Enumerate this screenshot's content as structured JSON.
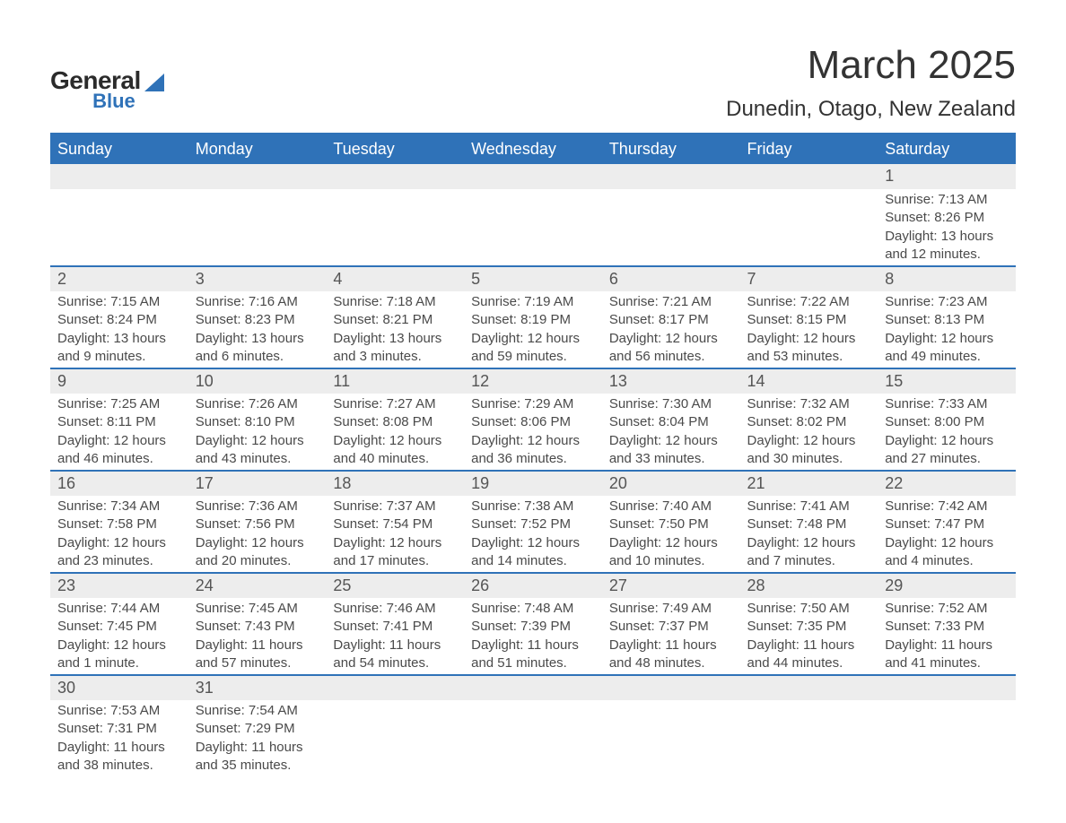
{
  "logo": {
    "general": "General",
    "blue": "Blue",
    "shape_color": "#2f72b8"
  },
  "header": {
    "month_title": "March 2025",
    "location": "Dunedin, Otago, New Zealand"
  },
  "colors": {
    "header_bg": "#2f72b8",
    "header_text": "#ffffff",
    "daynum_bg": "#ededed",
    "row_border": "#2f72b8",
    "body_text": "#4a4a4a",
    "page_bg": "#ffffff"
  },
  "typography": {
    "title_fontsize": 44,
    "location_fontsize": 24,
    "weekday_fontsize": 18,
    "daynum_fontsize": 18,
    "detail_fontsize": 15
  },
  "weekdays": [
    "Sunday",
    "Monday",
    "Tuesday",
    "Wednesday",
    "Thursday",
    "Friday",
    "Saturday"
  ],
  "weeks": [
    [
      null,
      null,
      null,
      null,
      null,
      null,
      {
        "n": "1",
        "sunrise": "Sunrise: 7:13 AM",
        "sunset": "Sunset: 8:26 PM",
        "daylight": "Daylight: 13 hours and 12 minutes."
      }
    ],
    [
      {
        "n": "2",
        "sunrise": "Sunrise: 7:15 AM",
        "sunset": "Sunset: 8:24 PM",
        "daylight": "Daylight: 13 hours and 9 minutes."
      },
      {
        "n": "3",
        "sunrise": "Sunrise: 7:16 AM",
        "sunset": "Sunset: 8:23 PM",
        "daylight": "Daylight: 13 hours and 6 minutes."
      },
      {
        "n": "4",
        "sunrise": "Sunrise: 7:18 AM",
        "sunset": "Sunset: 8:21 PM",
        "daylight": "Daylight: 13 hours and 3 minutes."
      },
      {
        "n": "5",
        "sunrise": "Sunrise: 7:19 AM",
        "sunset": "Sunset: 8:19 PM",
        "daylight": "Daylight: 12 hours and 59 minutes."
      },
      {
        "n": "6",
        "sunrise": "Sunrise: 7:21 AM",
        "sunset": "Sunset: 8:17 PM",
        "daylight": "Daylight: 12 hours and 56 minutes."
      },
      {
        "n": "7",
        "sunrise": "Sunrise: 7:22 AM",
        "sunset": "Sunset: 8:15 PM",
        "daylight": "Daylight: 12 hours and 53 minutes."
      },
      {
        "n": "8",
        "sunrise": "Sunrise: 7:23 AM",
        "sunset": "Sunset: 8:13 PM",
        "daylight": "Daylight: 12 hours and 49 minutes."
      }
    ],
    [
      {
        "n": "9",
        "sunrise": "Sunrise: 7:25 AM",
        "sunset": "Sunset: 8:11 PM",
        "daylight": "Daylight: 12 hours and 46 minutes."
      },
      {
        "n": "10",
        "sunrise": "Sunrise: 7:26 AM",
        "sunset": "Sunset: 8:10 PM",
        "daylight": "Daylight: 12 hours and 43 minutes."
      },
      {
        "n": "11",
        "sunrise": "Sunrise: 7:27 AM",
        "sunset": "Sunset: 8:08 PM",
        "daylight": "Daylight: 12 hours and 40 minutes."
      },
      {
        "n": "12",
        "sunrise": "Sunrise: 7:29 AM",
        "sunset": "Sunset: 8:06 PM",
        "daylight": "Daylight: 12 hours and 36 minutes."
      },
      {
        "n": "13",
        "sunrise": "Sunrise: 7:30 AM",
        "sunset": "Sunset: 8:04 PM",
        "daylight": "Daylight: 12 hours and 33 minutes."
      },
      {
        "n": "14",
        "sunrise": "Sunrise: 7:32 AM",
        "sunset": "Sunset: 8:02 PM",
        "daylight": "Daylight: 12 hours and 30 minutes."
      },
      {
        "n": "15",
        "sunrise": "Sunrise: 7:33 AM",
        "sunset": "Sunset: 8:00 PM",
        "daylight": "Daylight: 12 hours and 27 minutes."
      }
    ],
    [
      {
        "n": "16",
        "sunrise": "Sunrise: 7:34 AM",
        "sunset": "Sunset: 7:58 PM",
        "daylight": "Daylight: 12 hours and 23 minutes."
      },
      {
        "n": "17",
        "sunrise": "Sunrise: 7:36 AM",
        "sunset": "Sunset: 7:56 PM",
        "daylight": "Daylight: 12 hours and 20 minutes."
      },
      {
        "n": "18",
        "sunrise": "Sunrise: 7:37 AM",
        "sunset": "Sunset: 7:54 PM",
        "daylight": "Daylight: 12 hours and 17 minutes."
      },
      {
        "n": "19",
        "sunrise": "Sunrise: 7:38 AM",
        "sunset": "Sunset: 7:52 PM",
        "daylight": "Daylight: 12 hours and 14 minutes."
      },
      {
        "n": "20",
        "sunrise": "Sunrise: 7:40 AM",
        "sunset": "Sunset: 7:50 PM",
        "daylight": "Daylight: 12 hours and 10 minutes."
      },
      {
        "n": "21",
        "sunrise": "Sunrise: 7:41 AM",
        "sunset": "Sunset: 7:48 PM",
        "daylight": "Daylight: 12 hours and 7 minutes."
      },
      {
        "n": "22",
        "sunrise": "Sunrise: 7:42 AM",
        "sunset": "Sunset: 7:47 PM",
        "daylight": "Daylight: 12 hours and 4 minutes."
      }
    ],
    [
      {
        "n": "23",
        "sunrise": "Sunrise: 7:44 AM",
        "sunset": "Sunset: 7:45 PM",
        "daylight": "Daylight: 12 hours and 1 minute."
      },
      {
        "n": "24",
        "sunrise": "Sunrise: 7:45 AM",
        "sunset": "Sunset: 7:43 PM",
        "daylight": "Daylight: 11 hours and 57 minutes."
      },
      {
        "n": "25",
        "sunrise": "Sunrise: 7:46 AM",
        "sunset": "Sunset: 7:41 PM",
        "daylight": "Daylight: 11 hours and 54 minutes."
      },
      {
        "n": "26",
        "sunrise": "Sunrise: 7:48 AM",
        "sunset": "Sunset: 7:39 PM",
        "daylight": "Daylight: 11 hours and 51 minutes."
      },
      {
        "n": "27",
        "sunrise": "Sunrise: 7:49 AM",
        "sunset": "Sunset: 7:37 PM",
        "daylight": "Daylight: 11 hours and 48 minutes."
      },
      {
        "n": "28",
        "sunrise": "Sunrise: 7:50 AM",
        "sunset": "Sunset: 7:35 PM",
        "daylight": "Daylight: 11 hours and 44 minutes."
      },
      {
        "n": "29",
        "sunrise": "Sunrise: 7:52 AM",
        "sunset": "Sunset: 7:33 PM",
        "daylight": "Daylight: 11 hours and 41 minutes."
      }
    ],
    [
      {
        "n": "30",
        "sunrise": "Sunrise: 7:53 AM",
        "sunset": "Sunset: 7:31 PM",
        "daylight": "Daylight: 11 hours and 38 minutes."
      },
      {
        "n": "31",
        "sunrise": "Sunrise: 7:54 AM",
        "sunset": "Sunset: 7:29 PM",
        "daylight": "Daylight: 11 hours and 35 minutes."
      },
      null,
      null,
      null,
      null,
      null
    ]
  ]
}
